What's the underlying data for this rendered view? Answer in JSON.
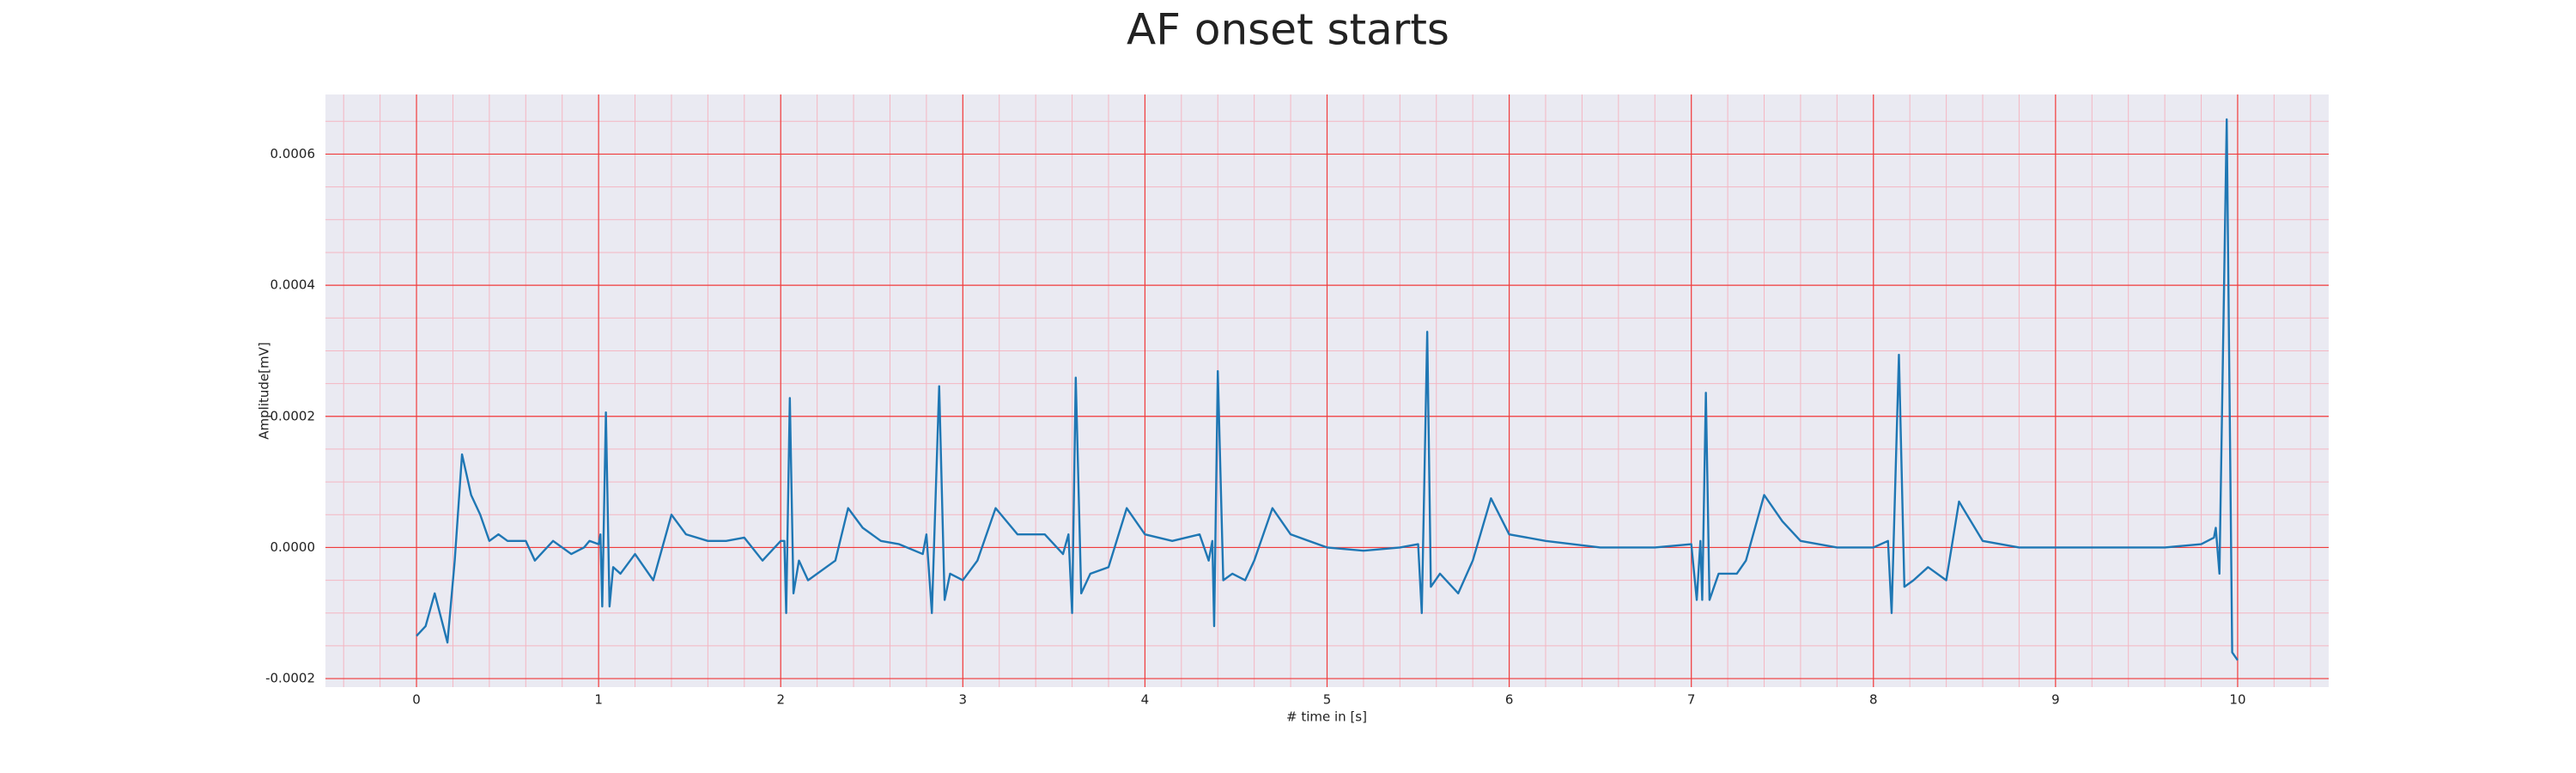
{
  "chart_data": {
    "type": "line",
    "title": "AF onset starts",
    "xlabel": "# time in [s]",
    "ylabel": "Amplitude[mV]",
    "xlim": [
      -0.5,
      10.5
    ],
    "ylim": [
      -0.000213,
      0.000691
    ],
    "xticks": [
      0,
      1,
      2,
      3,
      4,
      5,
      6,
      7,
      8,
      9,
      10
    ],
    "yticks": [
      -0.0002,
      {
        "value": 0,
        "label": "0.0000"
      },
      0.0002,
      0.0004,
      0.0006
    ],
    "grid": true,
    "minor_grid": {
      "x": 0.2,
      "y": 5e-05
    },
    "x": [
      0,
      0.05,
      0.1,
      0.17,
      0.21,
      0.25,
      0.3,
      0.35,
      0.4,
      0.45,
      0.5,
      0.6,
      0.65,
      0.75,
      0.85,
      0.92,
      0.95,
      1.0,
      1.01,
      1.02,
      1.04,
      1.06,
      1.08,
      1.12,
      1.2,
      1.3,
      1.4,
      1.48,
      1.6,
      1.7,
      1.8,
      1.9,
      2.0,
      2.02,
      2.03,
      2.05,
      2.07,
      2.1,
      2.15,
      2.3,
      2.37,
      2.45,
      2.55,
      2.65,
      2.78,
      2.8,
      2.83,
      2.87,
      2.9,
      2.93,
      3.0,
      3.08,
      3.18,
      3.3,
      3.45,
      3.55,
      3.58,
      3.6,
      3.62,
      3.65,
      3.7,
      3.8,
      3.9,
      4.0,
      4.15,
      4.3,
      4.35,
      4.37,
      4.38,
      4.4,
      4.43,
      4.48,
      4.55,
      4.6,
      4.7,
      4.8,
      5.0,
      5.2,
      5.4,
      5.5,
      5.52,
      5.55,
      5.57,
      5.62,
      5.72,
      5.8,
      5.9,
      6.0,
      6.2,
      6.5,
      6.8,
      7.0,
      7.03,
      7.05,
      7.06,
      7.08,
      7.1,
      7.15,
      7.25,
      7.3,
      7.4,
      7.5,
      7.6,
      7.8,
      8.0,
      8.08,
      8.1,
      8.14,
      8.17,
      8.22,
      8.3,
      8.4,
      8.47,
      8.6,
      8.8,
      9.0,
      9.3,
      9.6,
      9.8,
      9.87,
      9.88,
      9.9,
      9.94,
      9.97,
      10.0
    ],
    "series": [
      {
        "color": "#1f77b4",
        "values": [
          -0.000135,
          -0.00012,
          -7e-05,
          -0.000145,
          -2e-05,
          0.000142,
          8e-05,
          5e-05,
          1e-05,
          2e-05,
          1e-05,
          1e-05,
          -2e-05,
          1e-05,
          -1e-05,
          0.0,
          1e-05,
          5e-06,
          2e-05,
          -9e-05,
          0.000206,
          -9e-05,
          -3e-05,
          -4e-05,
          -1e-05,
          -5e-05,
          5e-05,
          2e-05,
          1e-05,
          1e-05,
          1.5e-05,
          -2e-05,
          1e-05,
          1e-05,
          -0.0001,
          0.000228,
          -7e-05,
          -2e-05,
          -5e-05,
          -2e-05,
          6e-05,
          3e-05,
          1e-05,
          5e-06,
          -1e-05,
          2e-05,
          -0.0001,
          0.000246,
          -8e-05,
          -4e-05,
          -5e-05,
          -2e-05,
          6e-05,
          2e-05,
          2e-05,
          -1e-05,
          2e-05,
          -0.0001,
          0.000259,
          -7e-05,
          -4e-05,
          -3e-05,
          6e-05,
          2e-05,
          1e-05,
          2e-05,
          -2e-05,
          1e-05,
          -0.00012,
          0.000269,
          -5e-05,
          -4e-05,
          -5e-05,
          -2e-05,
          6e-05,
          2e-05,
          0.0,
          -5e-06,
          0.0,
          5e-06,
          -0.0001,
          0.000329,
          -6e-05,
          -4e-05,
          -7e-05,
          -2e-05,
          7.5e-05,
          2e-05,
          1e-05,
          0.0,
          0.0,
          5e-06,
          -8e-05,
          1e-05,
          -8e-05,
          0.000236,
          -8e-05,
          -4e-05,
          -4e-05,
          -2e-05,
          8e-05,
          4e-05,
          1e-05,
          0.0,
          0.0,
          1e-05,
          -0.0001,
          0.000294,
          -6e-05,
          -5e-05,
          -3e-05,
          -5e-05,
          7e-05,
          1e-05,
          0.0,
          0.0,
          0.0,
          0.0,
          5e-06,
          1.5e-05,
          3e-05,
          -4e-05,
          0.000653,
          -0.00016,
          -0.000172
        ]
      }
    ]
  }
}
